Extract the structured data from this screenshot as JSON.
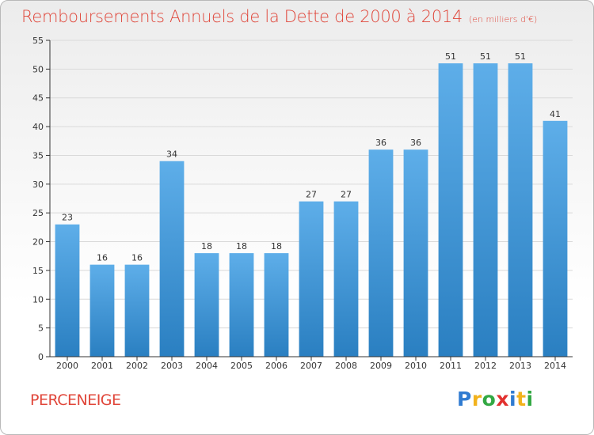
{
  "header": {
    "title": "Remboursements Annuels de la Dette de 2000 à 2014",
    "unit": "(en milliers d'€)"
  },
  "footer": {
    "town": "PERCENEIGE",
    "logo": {
      "letters": [
        "P",
        "r",
        "o",
        "x",
        "i",
        "t",
        "i"
      ],
      "colors": [
        "#2f7bd1",
        "#f2b21c",
        "#33a843",
        "#e2312f",
        "#2f7bd1",
        "#f2b21c",
        "#33a843"
      ]
    }
  },
  "colors": {
    "bar_light": "#5eaee9",
    "bar_dark": "#2a7fc1",
    "title": "#e0463a",
    "axis": "#333333",
    "grid": "#d9d9d9"
  },
  "chart_data": {
    "type": "bar",
    "title": "Remboursements Annuels de la Dette de 2000 à 2014",
    "subtitle": "(en milliers d'€)",
    "xlabel": "",
    "ylabel": "",
    "categories": [
      "2000",
      "2001",
      "2002",
      "2003",
      "2004",
      "2005",
      "2006",
      "2007",
      "2008",
      "2009",
      "2010",
      "2011",
      "2012",
      "2013",
      "2014"
    ],
    "values": [
      23,
      16,
      16,
      34,
      18,
      18,
      18,
      27,
      27,
      36,
      36,
      51,
      51,
      51,
      41
    ],
    "ylim": [
      0,
      55
    ],
    "yticks": [
      0,
      5,
      10,
      15,
      20,
      25,
      30,
      35,
      40,
      45,
      50,
      55
    ],
    "grid": true,
    "data_labels": true
  }
}
